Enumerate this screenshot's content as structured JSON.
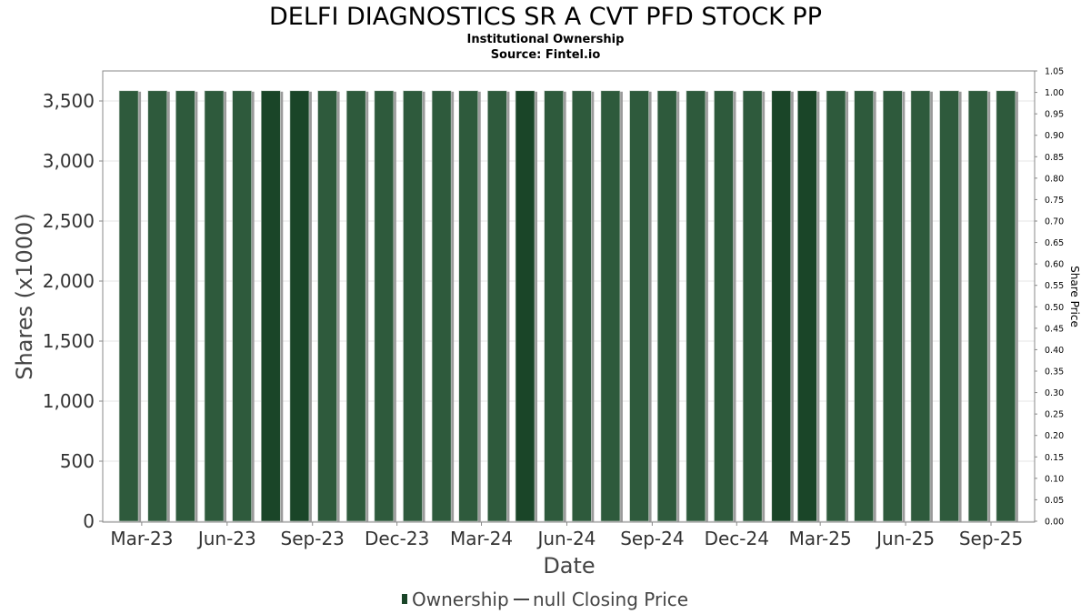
{
  "colors": {
    "bar": "#2e5a3c",
    "bar_dark": "#1a4528",
    "bar_shadow": "#9a9a9a",
    "grid": "#e4e4e4",
    "plot_border": "#888888",
    "line": "#444444"
  },
  "chart_data": {
    "type": "bar",
    "title": "DELFI DIAGNOSTICS SR A CVT PFD STOCK PP",
    "subtitle_lines": [
      "Institutional Ownership",
      "Source: Fintel.io"
    ],
    "xlabel": "Date",
    "ylabel": "Shares (x1000)",
    "y2label": "Share Price",
    "ylim": [
      0,
      3750
    ],
    "yticks": [
      0,
      500,
      1000,
      1500,
      2000,
      2500,
      3000,
      3500
    ],
    "ytick_labels": [
      "0",
      "500",
      "1,000",
      "1,500",
      "2,000",
      "2,500",
      "3,000",
      "3,500"
    ],
    "y2lim": [
      0,
      1.05
    ],
    "y2tick_labels": [
      "0.00",
      "0.05",
      "0.10",
      "0.15",
      "0.20",
      "0.25",
      "0.30",
      "0.35",
      "0.40",
      "0.45",
      "0.50",
      "0.55",
      "0.60",
      "0.65",
      "0.70",
      "0.75",
      "0.80",
      "0.85",
      "0.90",
      "0.95",
      "1.00",
      "1.05"
    ],
    "xtick_labels": [
      "Mar-23",
      "Jun-23",
      "Sep-23",
      "Dec-23",
      "Mar-24",
      "Jun-24",
      "Sep-24",
      "Dec-24",
      "Mar-25",
      "Jun-25",
      "Sep-25"
    ],
    "x_start": "2023-02-01",
    "x_end": "2025-11-01",
    "bar_dates": [
      "2023-03-01",
      "2023-04-01",
      "2023-05-01",
      "2023-06-01",
      "2023-07-01",
      "2023-08-01",
      "2023-09-01",
      "2023-10-01",
      "2023-11-01",
      "2023-12-01",
      "2024-01-01",
      "2024-02-01",
      "2024-03-01",
      "2024-04-01",
      "2024-05-01",
      "2024-06-01",
      "2024-07-01",
      "2024-08-01",
      "2024-09-01",
      "2024-10-01",
      "2024-11-01",
      "2024-12-01",
      "2025-01-01",
      "2025-02-01",
      "2025-03-01",
      "2025-04-01",
      "2025-05-01",
      "2025-06-01",
      "2025-07-01",
      "2025-08-01",
      "2025-09-01",
      "2025-10-01"
    ],
    "series": [
      {
        "name": "Ownership",
        "values": [
          3585,
          3585,
          3585,
          3585,
          3585,
          3585,
          3585,
          3585,
          3585,
          3585,
          3585,
          3585,
          3585,
          3585,
          3585,
          3585,
          3585,
          3585,
          3585,
          3585,
          3585,
          3585,
          3585,
          3585,
          3585,
          3585,
          3585,
          3585,
          3585,
          3585,
          3585,
          3585
        ],
        "shade": [
          "m",
          "m",
          "m",
          "m",
          "m",
          "d",
          "d",
          "m",
          "m",
          "m",
          "m",
          "m",
          "m",
          "m",
          "d",
          "m",
          "m",
          "m",
          "m",
          "m",
          "m",
          "m",
          "m",
          "d",
          "d",
          "m",
          "m",
          "m",
          "m",
          "m",
          "m",
          "m"
        ]
      }
    ],
    "legend": [
      "Ownership",
      "null Closing Price"
    ],
    "legend_position": "bottom",
    "grid": true
  }
}
